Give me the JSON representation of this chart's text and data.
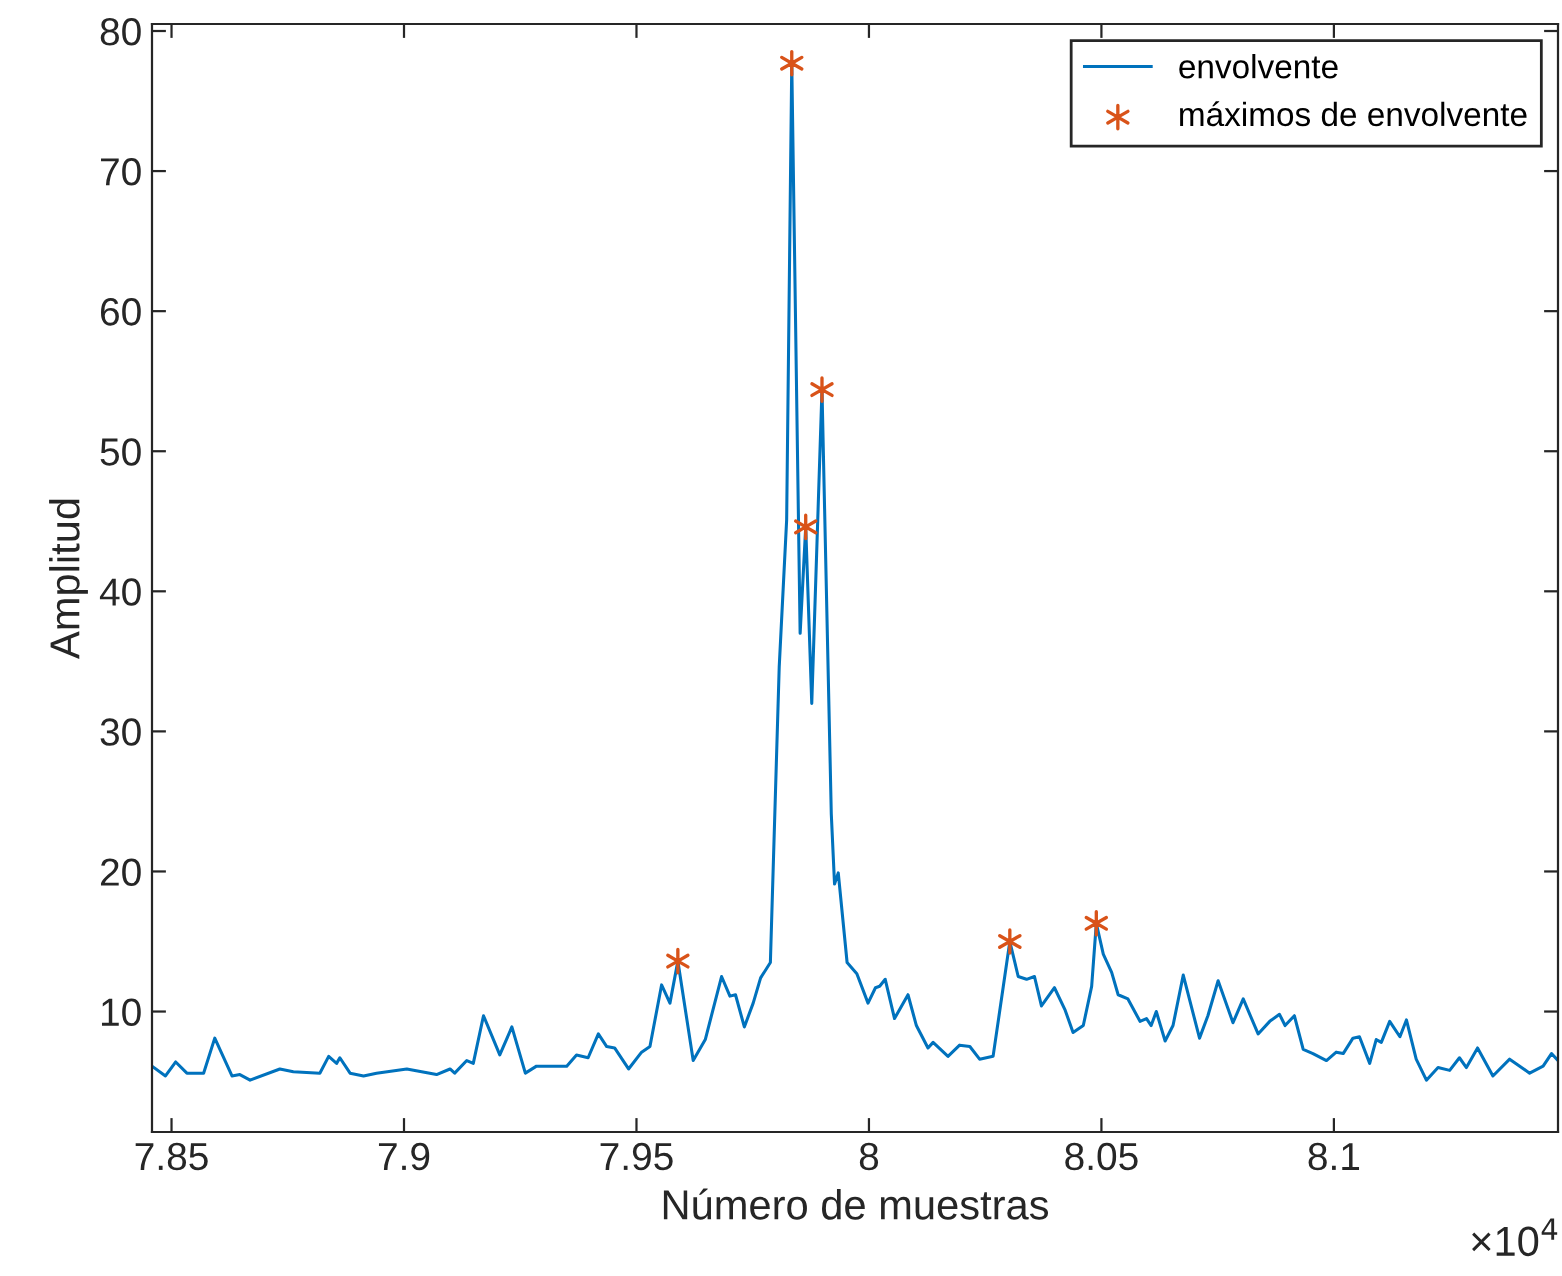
{
  "chart_data": {
    "type": "line",
    "xlabel": "Número de muestras",
    "ylabel": "Amplitud",
    "annotations": [
      "×10$^{4}$"
    ],
    "xlim": [
      7.8458,
      8.1482
    ],
    "ylim": [
      1.4,
      80.5
    ],
    "xticks": [
      7.85,
      7.9,
      7.95,
      8,
      8.05,
      8.1
    ],
    "yticks": [
      10,
      20,
      30,
      40,
      50,
      60,
      70,
      80
    ],
    "grid": false,
    "legend": "top right",
    "series": [
      {
        "name": "envolvente",
        "color": "#0072bd",
        "marker": "none",
        "line_style": "solid",
        "x": [
          7.8458,
          7.8487,
          7.8509,
          7.8533,
          7.8569,
          7.8593,
          7.863,
          7.8647,
          7.8669,
          7.8733,
          7.8762,
          7.8819,
          7.8838,
          7.8855,
          7.8862,
          7.8884,
          7.8913,
          7.8941,
          7.9006,
          7.907,
          7.9099,
          7.9109,
          7.9135,
          7.9149,
          7.9171,
          7.9206,
          7.9232,
          7.9261,
          7.9285,
          7.935,
          7.9371,
          7.9396,
          7.9418,
          7.9436,
          7.9453,
          7.9483,
          7.9511,
          7.9529,
          7.9554,
          7.9572,
          7.9589,
          7.9622,
          7.9648,
          7.9683,
          7.9701,
          7.9713,
          7.9732,
          7.9751,
          7.9767,
          7.9788,
          7.9807,
          7.9823,
          7.9834,
          7.9852,
          7.9864,
          7.9877,
          7.9899,
          7.9919,
          7.9926,
          7.9934,
          7.9953,
          7.9974,
          7.9998,
          8.0014,
          8.0023,
          8.0035,
          8.0055,
          8.0084,
          8.0102,
          8.0127,
          8.0138,
          8.017,
          8.0195,
          8.0217,
          8.0238,
          8.0267,
          8.0289,
          8.0303,
          8.0321,
          8.0339,
          8.0356,
          8.0371,
          8.0399,
          8.0422,
          8.0439,
          8.0461,
          8.0479,
          8.0489,
          8.0504,
          8.0522,
          8.0536,
          8.0557,
          8.0583,
          8.0597,
          8.0607,
          8.0618,
          8.0637,
          8.0654,
          8.0676,
          8.0711,
          8.0729,
          8.0751,
          8.0783,
          8.0805,
          8.0837,
          8.0862,
          8.0883,
          8.0895,
          8.0915,
          8.0934,
          8.0955,
          8.0984,
          8.1005,
          8.102,
          8.1041,
          8.1055,
          8.1077,
          8.1091,
          8.1102,
          8.112,
          8.1142,
          8.1156,
          8.1177,
          8.1199,
          8.1224,
          8.1249,
          8.127,
          8.1285,
          8.1309,
          8.1342,
          8.1378,
          8.1421,
          8.145,
          8.1468,
          8.1482
        ],
        "values": [
          6.1,
          5.4,
          6.4,
          5.6,
          5.6,
          8.1,
          5.4,
          5.5,
          5.1,
          5.9,
          5.7,
          5.6,
          6.8,
          6.3,
          6.7,
          5.6,
          5.4,
          5.6,
          5.9,
          5.5,
          5.9,
          5.6,
          6.5,
          6.3,
          9.7,
          6.9,
          8.9,
          5.6,
          6.1,
          6.1,
          6.9,
          6.7,
          8.4,
          7.5,
          7.4,
          5.9,
          7.1,
          7.5,
          11.9,
          10.6,
          13.6,
          6.5,
          8.0,
          12.5,
          11.1,
          11.2,
          8.9,
          10.6,
          12.4,
          13.5,
          34.6,
          45.1,
          77.7,
          37.0,
          44.6,
          32.0,
          54.4,
          24.1,
          19.1,
          19.9,
          13.5,
          12.7,
          10.6,
          11.7,
          11.8,
          12.3,
          9.5,
          11.2,
          9.0,
          7.4,
          7.8,
          6.8,
          7.6,
          7.5,
          6.6,
          6.8,
          11.8,
          15.0,
          12.5,
          12.3,
          12.5,
          10.4,
          11.7,
          10.1,
          8.5,
          9.0,
          11.8,
          16.3,
          14.1,
          12.8,
          11.2,
          10.9,
          9.3,
          9.5,
          9.0,
          10.0,
          7.9,
          9.0,
          12.6,
          8.1,
          9.7,
          12.2,
          9.2,
          10.9,
          8.4,
          9.3,
          9.8,
          9.0,
          9.7,
          7.3,
          7.0,
          6.5,
          7.1,
          7.0,
          8.1,
          8.2,
          6.3,
          8.0,
          7.8,
          9.3,
          8.2,
          9.4,
          6.6,
          5.1,
          6.0,
          5.8,
          6.7,
          6.0,
          7.4,
          5.4,
          6.6,
          5.6,
          6.1,
          7.0,
          6.5
        ]
      },
      {
        "name": "máximos de envolvente",
        "color": "#d95319",
        "type": "scatter",
        "marker": "cross",
        "x": [
          7.9589,
          7.9834,
          7.9864,
          7.9899,
          8.0303,
          8.0489
        ],
        "values": [
          13.6,
          77.7,
          44.6,
          54.4,
          15.0,
          16.3
        ]
      }
    ]
  }
}
